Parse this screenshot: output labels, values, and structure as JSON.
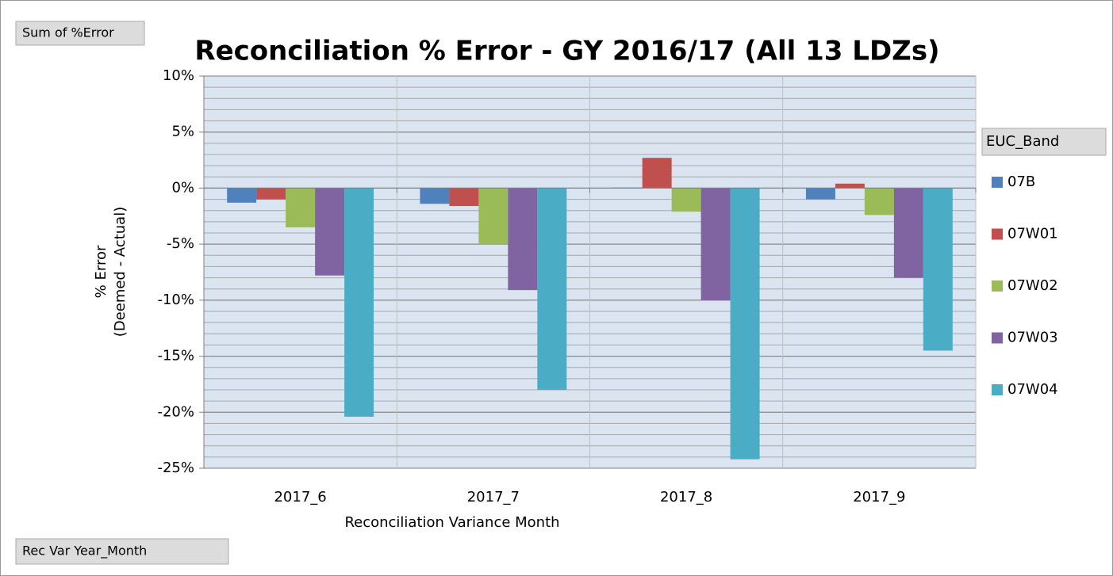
{
  "chart_data": {
    "type": "bar",
    "title": "Reconciliation % Error - GY 2016/17 (All 13 LDZs)",
    "value_button": "Sum of %Error",
    "legend_title": "EUC_Band",
    "axis_button": "Rec Var Year_Month",
    "xlabel": "Reconciliation Variance Month",
    "ylabel": [
      "% Error",
      "(Deemed - Actual)"
    ],
    "categories": [
      "2017_6",
      "2017_7",
      "2017_8",
      "2017_9"
    ],
    "series": [
      {
        "name": "07B",
        "color": "#4f81bd",
        "values": [
          -1.3,
          -1.4,
          0.05,
          -1.0
        ]
      },
      {
        "name": "07W01",
        "color": "#c0504d",
        "values": [
          -1.0,
          -1.6,
          2.7,
          0.4
        ]
      },
      {
        "name": "07W02",
        "color": "#9bbb59",
        "values": [
          -3.5,
          -5.0,
          -2.1,
          -2.4
        ]
      },
      {
        "name": "07W03",
        "color": "#8064a2",
        "values": [
          -7.8,
          -9.1,
          -10.0,
          -8.0
        ]
      },
      {
        "name": "07W04",
        "color": "#4bacc6",
        "values": [
          -20.4,
          -18.0,
          -24.2,
          -14.5
        ]
      }
    ],
    "ylim": [
      -25,
      10
    ],
    "yticks": [
      {
        "value": -25,
        "label": "-25%"
      },
      {
        "value": -20,
        "label": "-20%"
      },
      {
        "value": -15,
        "label": "-15%"
      },
      {
        "value": -10,
        "label": "-10%"
      },
      {
        "value": -5,
        "label": "-5%"
      },
      {
        "value": 0,
        "label": "0%"
      },
      {
        "value": 5,
        "label": "5%"
      },
      {
        "value": 10,
        "label": "10%"
      }
    ],
    "yminor": 1,
    "grid": true,
    "legend": "right"
  }
}
